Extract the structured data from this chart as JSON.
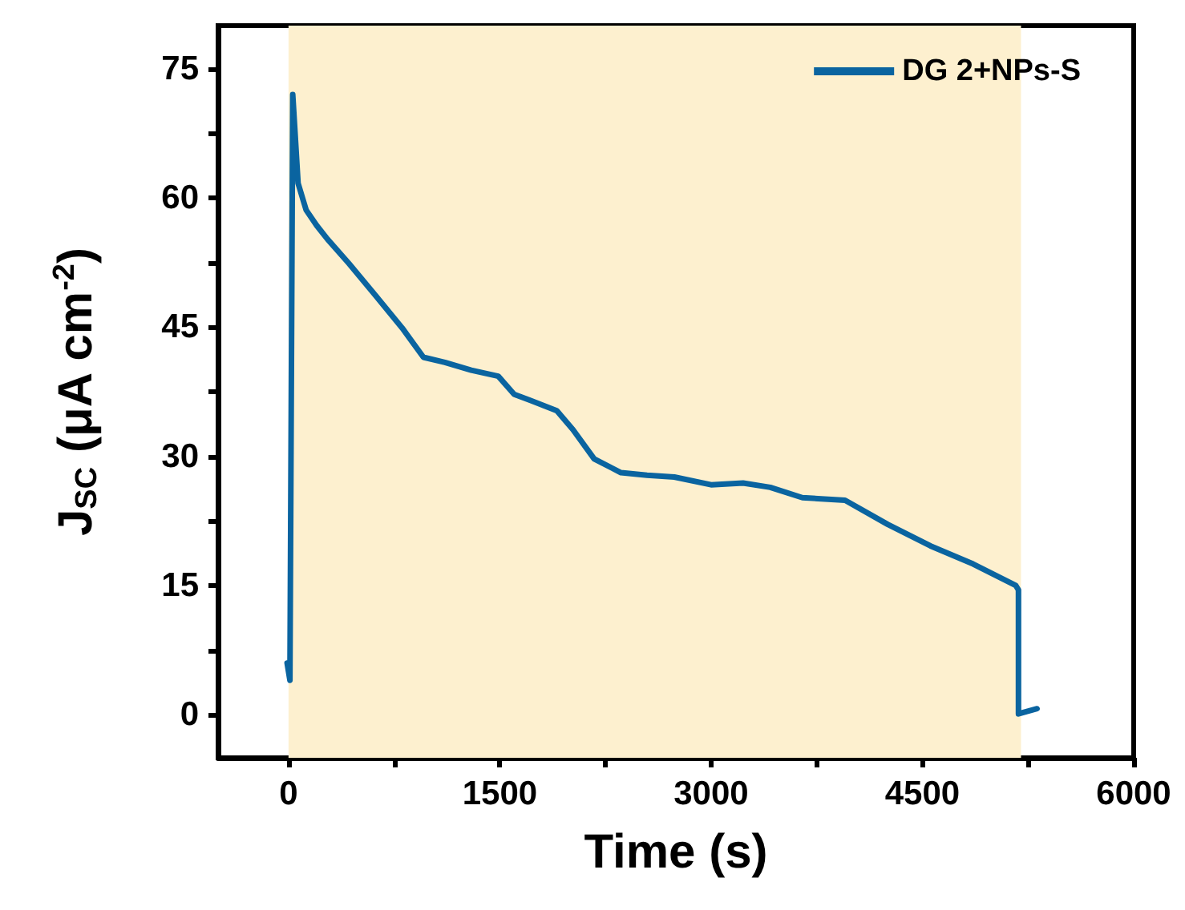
{
  "chart_data": {
    "type": "line",
    "xlabel": "Time (s)",
    "ylabel": "J$_{SC}$ (μA cm$^{-2}$)",
    "xlim": [
      -500,
      6000
    ],
    "xticks": [
      0,
      {
        "value": 750,
        "label": null
      },
      1500,
      {
        "value": 2250,
        "label": null
      },
      3000,
      {
        "value": 3750,
        "label": null
      },
      4500,
      {
        "value": 5250,
        "label": null
      },
      6000
    ],
    "ylim": [
      -5,
      80
    ],
    "yticks": [
      0,
      {
        "value": 7.5,
        "label": null
      },
      15,
      {
        "value": 22.5,
        "label": null
      },
      30,
      {
        "value": 37.5,
        "label": null
      },
      45,
      {
        "value": 52.5,
        "label": null
      },
      60,
      {
        "value": 67.5,
        "label": null
      },
      75
    ],
    "grid": false,
    "legend": "top right",
    "marker": "none",
    "line_style": "solid",
    "bands": [
      {
        "axis": "x",
        "from": 0,
        "to": 5200,
        "color": "#fdf0cf"
      }
    ],
    "series": [
      {
        "name": "DG 2+NPs-S",
        "color": "#0a64a0",
        "x": [
          -10,
          0,
          10,
          15,
          30,
          68,
          125,
          200,
          277,
          428,
          616,
          807,
          958,
          1110,
          1297,
          1489,
          1602,
          1716,
          1905,
          2019,
          2170,
          2360,
          2545,
          2739,
          3000,
          3227,
          3420,
          3648,
          3951,
          4254,
          4557,
          4860,
          5163,
          5182,
          5182,
          5314
        ],
        "values": [
          6,
          5,
          4,
          4,
          72,
          61.7,
          58.6,
          56.8,
          55.2,
          52.4,
          48.7,
          44.9,
          41.5,
          40.9,
          40.0,
          39.3,
          37.2,
          36.5,
          35.3,
          33.1,
          29.7,
          28.1,
          27.8,
          27.6,
          26.7,
          26.9,
          26.4,
          25.2,
          24.9,
          22.1,
          19.6,
          17.5,
          15.0,
          14.5,
          0.1,
          0.7
        ]
      }
    ]
  }
}
